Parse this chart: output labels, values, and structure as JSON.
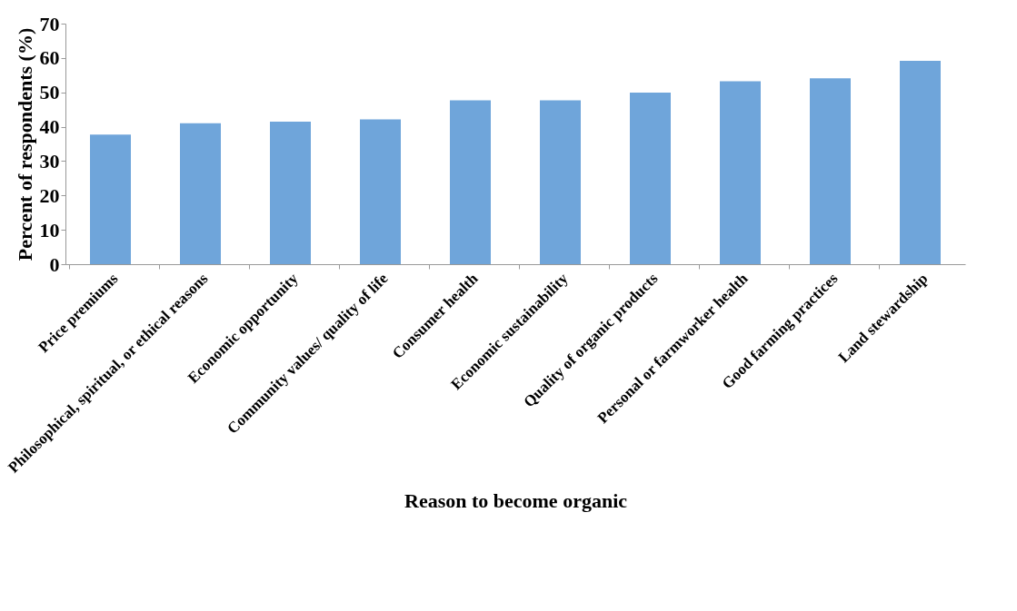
{
  "chart_data": {
    "type": "bar",
    "xlabel": "Reason to become organic",
    "ylabel": "Percent of respondents (%)",
    "categories": [
      "Price premiums",
      "Philosophical, spiritual, or ethical reasons",
      "Economic opportunity",
      "Community values/ quality of life",
      "Consumer health",
      "Economic sustainability",
      "Quality of organic products",
      "Personal or farmworker health",
      "Good farming practices",
      "Land stewardship"
    ],
    "values": [
      37.7,
      41,
      41.5,
      42.1,
      47.7,
      47.7,
      49.9,
      53.2,
      54.1,
      59.2
    ],
    "color": "#6fa5da",
    "ylim": [
      0,
      70
    ],
    "yticks": [
      0,
      10,
      20,
      30,
      40,
      50,
      60,
      70
    ],
    "grid": false
  }
}
